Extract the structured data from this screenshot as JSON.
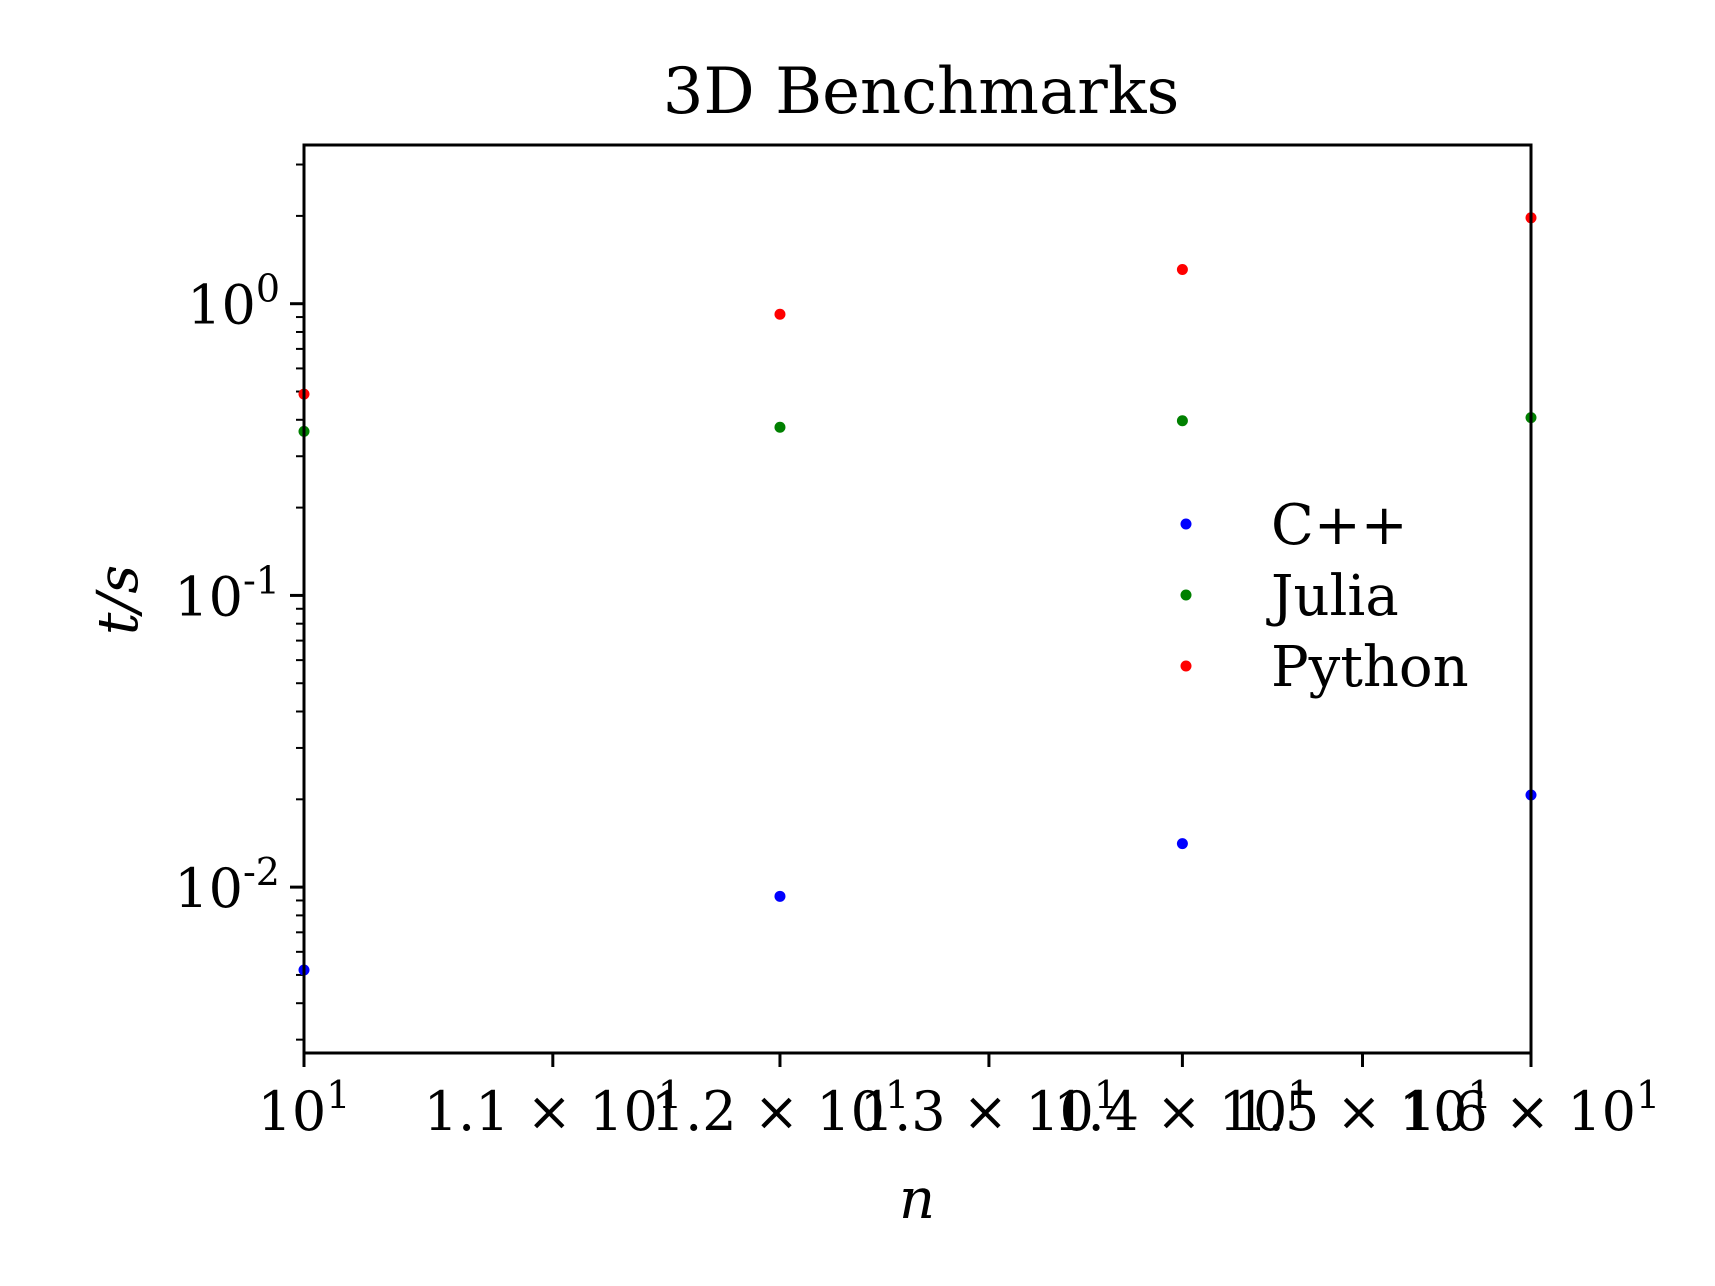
{
  "chart_data": {
    "type": "scatter",
    "title": "3D Benchmarks",
    "xlabel": "n",
    "ylabel": "t/s",
    "x_scale": "log",
    "y_scale": "log",
    "xlim": [
      10,
      16
    ],
    "ylim": [
      0.0027,
      3.5
    ],
    "x_ticks": [
      {
        "value": 10,
        "mantissa": "",
        "base": "10",
        "exponent": "1"
      },
      {
        "value": 11,
        "mantissa": "1.1 × ",
        "base": "10",
        "exponent": "1"
      },
      {
        "value": 12,
        "mantissa": "1.2 × ",
        "base": "10",
        "exponent": "1"
      },
      {
        "value": 13,
        "mantissa": "1.3 × ",
        "base": "10",
        "exponent": "1"
      },
      {
        "value": 14,
        "mantissa": "1.4 × ",
        "base": "10",
        "exponent": "1"
      },
      {
        "value": 15,
        "mantissa": "1.5 × ",
        "base": "10",
        "exponent": "1"
      },
      {
        "value": 16,
        "mantissa": "1.6 × ",
        "base": "10",
        "exponent": "1"
      }
    ],
    "y_ticks": [
      {
        "value": 1,
        "base": "10",
        "exponent": "0"
      },
      {
        "value": 0.1,
        "base": "10",
        "exponent": "-1"
      },
      {
        "value": 0.01,
        "base": "10",
        "exponent": "-2"
      }
    ],
    "x": [
      10,
      12,
      14,
      16
    ],
    "series": [
      {
        "name": "C++",
        "color": "#0000ff",
        "values": [
          0.0052,
          0.0093,
          0.0141,
          0.0207
        ]
      },
      {
        "name": "Julia",
        "color": "#008000",
        "values": [
          0.365,
          0.377,
          0.397,
          0.407
        ]
      },
      {
        "name": "Python",
        "color": "#ff0000",
        "values": [
          0.49,
          0.92,
          1.31,
          1.97
        ]
      }
    ],
    "legend_position": "center-right",
    "grid": false
  }
}
